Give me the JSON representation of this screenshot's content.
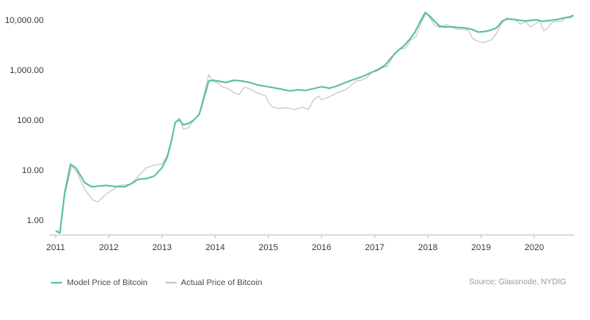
{
  "chart_data": {
    "type": "line",
    "title": "",
    "xlabel": "",
    "ylabel": "",
    "yscale": "log",
    "ylim": [
      0.5,
      12000
    ],
    "xlim": [
      2011.0,
      2020.75
    ],
    "y_ticks": [
      {
        "value": 1,
        "label": "1.00"
      },
      {
        "value": 10,
        "label": "10.00"
      },
      {
        "value": 100,
        "label": "100.00"
      },
      {
        "value": 1000,
        "label": "1,000.00"
      },
      {
        "value": 10000,
        "label": "10,000.00"
      }
    ],
    "x_ticks": [
      {
        "value": 2011,
        "label": "2011"
      },
      {
        "value": 2012,
        "label": "2012"
      },
      {
        "value": 2013,
        "label": "2013"
      },
      {
        "value": 2014,
        "label": "2014"
      },
      {
        "value": 2015,
        "label": "2015"
      },
      {
        "value": 2016,
        "label": "2016"
      },
      {
        "value": 2017,
        "label": "2017"
      },
      {
        "value": 2018,
        "label": "2018"
      },
      {
        "value": 2019,
        "label": "2019"
      },
      {
        "value": 2020,
        "label": "2020"
      }
    ],
    "grid": false,
    "legend_position": "bottom-left",
    "series": [
      {
        "name": "Actual Price of Bitcoin",
        "color": "#c8c8c8",
        "points": [
          [
            2011.0,
            0.6
          ],
          [
            2011.08,
            0.6
          ],
          [
            2011.15,
            2.5
          ],
          [
            2011.3,
            12
          ],
          [
            2011.4,
            9
          ],
          [
            2011.55,
            4
          ],
          [
            2011.7,
            2.5
          ],
          [
            2011.8,
            2.3
          ],
          [
            2011.95,
            3.3
          ],
          [
            2012.2,
            4.9
          ],
          [
            2012.4,
            5.1
          ],
          [
            2012.55,
            7.5
          ],
          [
            2012.7,
            11
          ],
          [
            2012.85,
            12.5
          ],
          [
            2013.0,
            13
          ],
          [
            2013.1,
            20
          ],
          [
            2013.18,
            40
          ],
          [
            2013.25,
            90
          ],
          [
            2013.33,
            110
          ],
          [
            2013.4,
            65
          ],
          [
            2013.5,
            70
          ],
          [
            2013.6,
            100
          ],
          [
            2013.7,
            130
          ],
          [
            2013.8,
            350
          ],
          [
            2013.88,
            800
          ],
          [
            2013.95,
            600
          ],
          [
            2014.05,
            550
          ],
          [
            2014.15,
            450
          ],
          [
            2014.25,
            420
          ],
          [
            2014.35,
            350
          ],
          [
            2014.45,
            320
          ],
          [
            2014.55,
            450
          ],
          [
            2014.65,
            420
          ],
          [
            2014.75,
            360
          ],
          [
            2014.85,
            330
          ],
          [
            2014.95,
            300
          ],
          [
            2015.0,
            230
          ],
          [
            2015.08,
            180
          ],
          [
            2015.2,
            170
          ],
          [
            2015.35,
            175
          ],
          [
            2015.5,
            160
          ],
          [
            2015.65,
            180
          ],
          [
            2015.75,
            160
          ],
          [
            2015.85,
            250
          ],
          [
            2015.95,
            300
          ],
          [
            2016.0,
            250
          ],
          [
            2016.15,
            290
          ],
          [
            2016.3,
            350
          ],
          [
            2016.45,
            400
          ],
          [
            2016.55,
            480
          ],
          [
            2016.65,
            600
          ],
          [
            2016.75,
            620
          ],
          [
            2016.85,
            700
          ],
          [
            2016.95,
            900
          ],
          [
            2017.05,
            950
          ],
          [
            2017.15,
            1100
          ],
          [
            2017.25,
            1200
          ],
          [
            2017.38,
            2200
          ],
          [
            2017.48,
            2600
          ],
          [
            2017.58,
            2700
          ],
          [
            2017.68,
            4000
          ],
          [
            2017.78,
            4700
          ],
          [
            2017.88,
            9000
          ],
          [
            2017.97,
            13800
          ],
          [
            2018.05,
            10500
          ],
          [
            2018.12,
            8000
          ],
          [
            2018.22,
            7000
          ],
          [
            2018.35,
            8000
          ],
          [
            2018.45,
            7000
          ],
          [
            2018.55,
            6500
          ],
          [
            2018.65,
            6400
          ],
          [
            2018.75,
            6300
          ],
          [
            2018.85,
            4200
          ],
          [
            2018.95,
            3700
          ],
          [
            2019.05,
            3500
          ],
          [
            2019.2,
            4000
          ],
          [
            2019.3,
            5500
          ],
          [
            2019.38,
            8200
          ],
          [
            2019.48,
            11000
          ],
          [
            2019.56,
            10000
          ],
          [
            2019.64,
            10300
          ],
          [
            2019.74,
            8200
          ],
          [
            2019.84,
            9200
          ],
          [
            2019.93,
            7200
          ],
          [
            2020.0,
            8000
          ],
          [
            2020.1,
            9500
          ],
          [
            2020.18,
            6000
          ],
          [
            2020.26,
            7000
          ],
          [
            2020.34,
            9000
          ],
          [
            2020.44,
            9400
          ],
          [
            2020.52,
            9200
          ],
          [
            2020.6,
            11500
          ],
          [
            2020.68,
            10800
          ],
          [
            2020.74,
            12000
          ]
        ]
      },
      {
        "name": "Model Price of Bitcoin",
        "color": "#5bbf9e",
        "points": [
          [
            2011.0,
            0.6
          ],
          [
            2011.08,
            0.55
          ],
          [
            2011.17,
            3.5
          ],
          [
            2011.28,
            13
          ],
          [
            2011.38,
            11
          ],
          [
            2011.55,
            5.5
          ],
          [
            2011.68,
            4.6
          ],
          [
            2011.82,
            4.8
          ],
          [
            2011.95,
            4.9
          ],
          [
            2012.1,
            4.7
          ],
          [
            2012.3,
            4.6
          ],
          [
            2012.45,
            5.5
          ],
          [
            2012.55,
            6.5
          ],
          [
            2012.7,
            6.7
          ],
          [
            2012.85,
            7.5
          ],
          [
            2013.0,
            11
          ],
          [
            2013.1,
            18
          ],
          [
            2013.18,
            40
          ],
          [
            2013.25,
            90
          ],
          [
            2013.33,
            100
          ],
          [
            2013.4,
            80
          ],
          [
            2013.5,
            85
          ],
          [
            2013.6,
            100
          ],
          [
            2013.7,
            130
          ],
          [
            2013.8,
            300
          ],
          [
            2013.88,
            600
          ],
          [
            2013.95,
            620
          ],
          [
            2014.05,
            600
          ],
          [
            2014.2,
            560
          ],
          [
            2014.35,
            620
          ],
          [
            2014.5,
            600
          ],
          [
            2014.65,
            560
          ],
          [
            2014.8,
            500
          ],
          [
            2014.95,
            470
          ],
          [
            2015.1,
            440
          ],
          [
            2015.25,
            410
          ],
          [
            2015.4,
            380
          ],
          [
            2015.55,
            400
          ],
          [
            2015.7,
            390
          ],
          [
            2015.85,
            420
          ],
          [
            2016.0,
            460
          ],
          [
            2016.15,
            430
          ],
          [
            2016.3,
            480
          ],
          [
            2016.45,
            560
          ],
          [
            2016.6,
            640
          ],
          [
            2016.75,
            720
          ],
          [
            2016.9,
            850
          ],
          [
            2017.05,
            1000
          ],
          [
            2017.2,
            1250
          ],
          [
            2017.32,
            1800
          ],
          [
            2017.45,
            2500
          ],
          [
            2017.55,
            3000
          ],
          [
            2017.65,
            4000
          ],
          [
            2017.75,
            5500
          ],
          [
            2017.85,
            9000
          ],
          [
            2017.95,
            14000
          ],
          [
            2018.05,
            11500
          ],
          [
            2018.12,
            9500
          ],
          [
            2018.22,
            7500
          ],
          [
            2018.32,
            7200
          ],
          [
            2018.45,
            7300
          ],
          [
            2018.58,
            7000
          ],
          [
            2018.7,
            6900
          ],
          [
            2018.82,
            6500
          ],
          [
            2018.95,
            5700
          ],
          [
            2019.05,
            5800
          ],
          [
            2019.18,
            6200
          ],
          [
            2019.3,
            7000
          ],
          [
            2019.4,
            9500
          ],
          [
            2019.5,
            10500
          ],
          [
            2019.6,
            10200
          ],
          [
            2019.72,
            9800
          ],
          [
            2019.84,
            9500
          ],
          [
            2019.95,
            9800
          ],
          [
            2020.05,
            10000
          ],
          [
            2020.15,
            9400
          ],
          [
            2020.25,
            9600
          ],
          [
            2020.35,
            9900
          ],
          [
            2020.45,
            10200
          ],
          [
            2020.55,
            10800
          ],
          [
            2020.65,
            11300
          ],
          [
            2020.74,
            12300
          ]
        ]
      }
    ]
  },
  "legend": {
    "model_label": "Model Price of Bitcoin",
    "actual_label": "Actual Price of Bitcoin"
  },
  "source_text": "Source: Glassnode, NYDIG"
}
